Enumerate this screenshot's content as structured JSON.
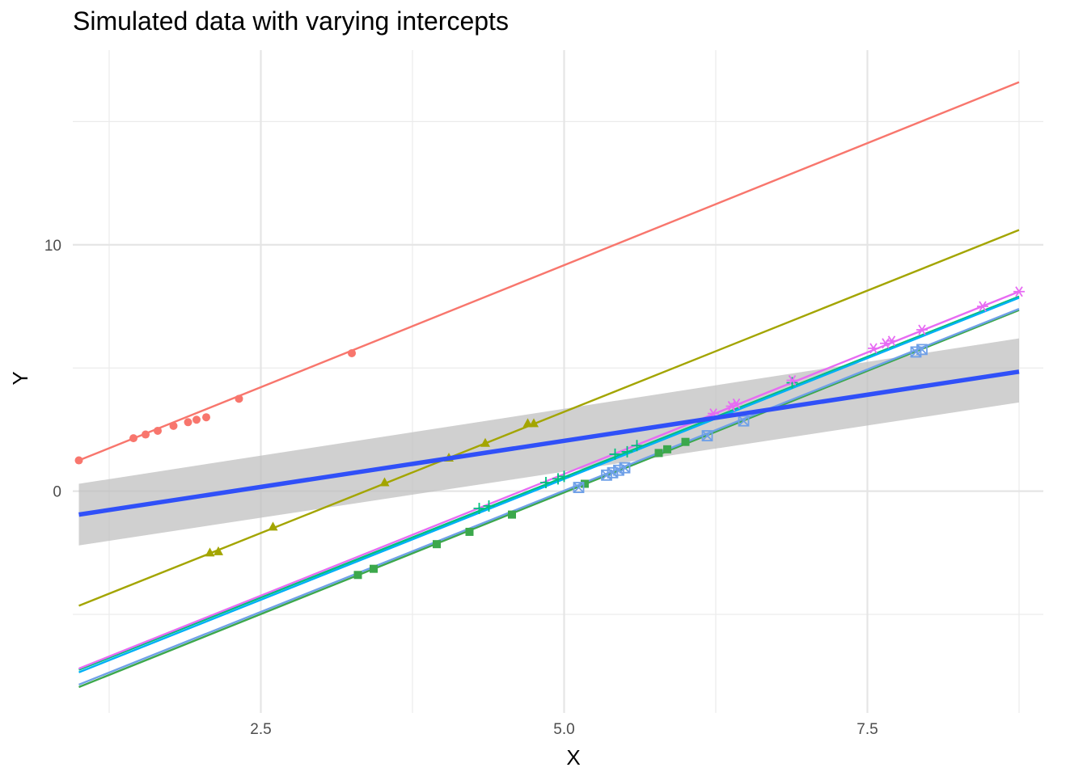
{
  "chart_data": {
    "type": "scatter",
    "title": "Simulated data with varying intercepts",
    "xlabel": "X",
    "ylabel": "Y",
    "xlim": [
      0.95,
      8.95
    ],
    "ylim": [
      -9.0,
      17.9
    ],
    "x_ticks": [
      2.5,
      5.0,
      7.5
    ],
    "x_tick_labels": [
      "2.5",
      "5.0",
      "7.5"
    ],
    "y_ticks": [
      0,
      10
    ],
    "y_tick_labels": [
      "0",
      "10"
    ],
    "grid": true,
    "legend": "none",
    "colors": {
      "group1": "#F8766D",
      "group2": "#A3A500",
      "group3": "#00BF7D",
      "group4": "#00B0F6",
      "group5": "#E76BF3",
      "group6": "#3CA84C",
      "group7": "#6FA0E8",
      "pooled_fit": "#3050F8",
      "ribbon": "#BEBEBE"
    },
    "series": [
      {
        "color_key": "group1",
        "shape": "circle",
        "line": {
          "x": [
            1.0,
            8.75
          ],
          "y": [
            1.25,
            16.6
          ]
        },
        "points": [
          [
            1.0,
            1.25
          ],
          [
            1.45,
            2.15
          ],
          [
            1.55,
            2.3
          ],
          [
            1.65,
            2.45
          ],
          [
            1.78,
            2.65
          ],
          [
            1.9,
            2.8
          ],
          [
            1.97,
            2.9
          ],
          [
            2.05,
            3.0
          ],
          [
            2.32,
            3.75
          ],
          [
            3.25,
            5.6
          ]
        ]
      },
      {
        "color_key": "group2",
        "shape": "triangle",
        "line": {
          "x": [
            1.0,
            8.75
          ],
          "y": [
            -4.65,
            10.6
          ]
        },
        "points": [
          [
            2.08,
            -2.5
          ],
          [
            2.15,
            -2.45
          ],
          [
            2.6,
            -1.45
          ],
          [
            3.52,
            0.35
          ],
          [
            4.05,
            1.35
          ],
          [
            4.35,
            1.95
          ],
          [
            4.7,
            2.75
          ],
          [
            4.75,
            2.75
          ]
        ]
      },
      {
        "color_key": "group3",
        "shape": "plus",
        "line": {
          "x": [
            1.0,
            8.75
          ],
          "y": [
            -7.25,
            7.9
          ]
        },
        "points": [
          [
            4.3,
            -0.7
          ],
          [
            4.38,
            -0.6
          ],
          [
            4.85,
            0.35
          ],
          [
            4.95,
            0.5
          ],
          [
            5.0,
            0.6
          ],
          [
            5.42,
            1.5
          ],
          [
            5.52,
            1.6
          ],
          [
            5.6,
            1.85
          ],
          [
            6.88,
            4.4
          ]
        ]
      },
      {
        "color_key": "group4",
        "shape": "line-only",
        "line": {
          "x": [
            1.0,
            8.75
          ],
          "y": [
            -7.35,
            7.85
          ]
        },
        "points": []
      },
      {
        "color_key": "group5",
        "shape": "asterisk",
        "line": {
          "x": [
            1.0,
            8.75
          ],
          "y": [
            -7.2,
            8.1
          ]
        },
        "points": [
          [
            6.23,
            3.15
          ],
          [
            6.38,
            3.45
          ],
          [
            6.42,
            3.55
          ],
          [
            6.88,
            4.5
          ],
          [
            7.55,
            5.8
          ],
          [
            7.65,
            6.0
          ],
          [
            7.7,
            6.1
          ],
          [
            7.95,
            6.55
          ],
          [
            8.45,
            7.5
          ],
          [
            8.75,
            8.1
          ]
        ]
      },
      {
        "color_key": "group6",
        "shape": "square",
        "line": {
          "x": [
            1.0,
            8.75
          ],
          "y": [
            -7.95,
            7.35
          ]
        },
        "points": [
          [
            3.3,
            -3.4
          ],
          [
            3.43,
            -3.15
          ],
          [
            3.95,
            -2.15
          ],
          [
            4.22,
            -1.65
          ],
          [
            4.57,
            -0.95
          ],
          [
            5.17,
            0.3
          ],
          [
            5.78,
            1.55
          ],
          [
            5.85,
            1.7
          ],
          [
            6.0,
            2.0
          ]
        ]
      },
      {
        "color_key": "group7",
        "shape": "square-open",
        "line": {
          "x": [
            1.0,
            8.75
          ],
          "y": [
            -7.85,
            7.4
          ]
        },
        "points": [
          [
            5.12,
            0.15
          ],
          [
            5.35,
            0.65
          ],
          [
            5.4,
            0.75
          ],
          [
            5.45,
            0.85
          ],
          [
            5.5,
            0.95
          ],
          [
            6.18,
            2.25
          ],
          [
            6.48,
            2.85
          ],
          [
            7.9,
            5.65
          ],
          [
            7.95,
            5.75
          ]
        ]
      }
    ],
    "pooled_fit": {
      "x": [
        1.0,
        8.75
      ],
      "y": [
        -0.95,
        4.85
      ],
      "ribbon_lower": [
        -2.2,
        3.6
      ],
      "ribbon_upper": [
        0.3,
        6.2
      ]
    }
  }
}
